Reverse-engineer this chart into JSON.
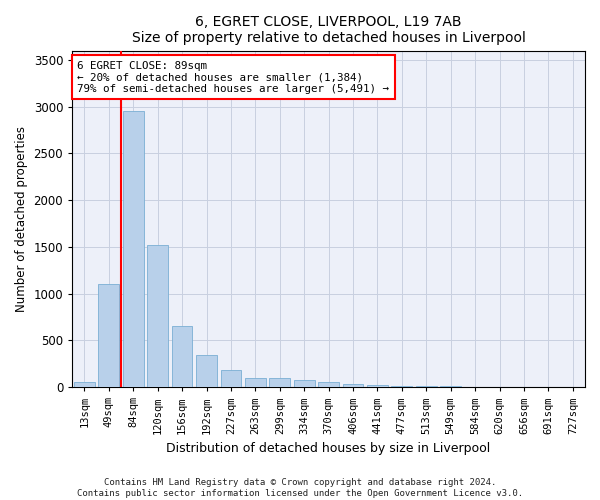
{
  "title": "6, EGRET CLOSE, LIVERPOOL, L19 7AB",
  "subtitle": "Size of property relative to detached houses in Liverpool",
  "xlabel": "Distribution of detached houses by size in Liverpool",
  "ylabel": "Number of detached properties",
  "categories": [
    "13sqm",
    "49sqm",
    "84sqm",
    "120sqm",
    "156sqm",
    "192sqm",
    "227sqm",
    "263sqm",
    "299sqm",
    "334sqm",
    "370sqm",
    "406sqm",
    "441sqm",
    "477sqm",
    "513sqm",
    "549sqm",
    "584sqm",
    "620sqm",
    "656sqm",
    "691sqm",
    "727sqm"
  ],
  "values": [
    50,
    1100,
    2950,
    1520,
    650,
    340,
    185,
    95,
    100,
    75,
    55,
    35,
    20,
    15,
    8,
    8,
    5,
    3,
    2,
    2,
    2
  ],
  "bar_color": "#b8d0ea",
  "bar_edge_color": "#7aafd4",
  "ylim": [
    0,
    3600
  ],
  "yticks": [
    0,
    500,
    1000,
    1500,
    2000,
    2500,
    3000,
    3500
  ],
  "property_line_index": 2,
  "annotation_title": "6 EGRET CLOSE: 89sqm",
  "annotation_line1": "← 20% of detached houses are smaller (1,384)",
  "annotation_line2": "79% of semi-detached houses are larger (5,491) →",
  "footnote1": "Contains HM Land Registry data © Crown copyright and database right 2024.",
  "footnote2": "Contains public sector information licensed under the Open Government Licence v3.0.",
  "bg_color": "#edf0f9",
  "grid_color": "#c8cfe0",
  "fig_width": 6.0,
  "fig_height": 5.0,
  "dpi": 100
}
